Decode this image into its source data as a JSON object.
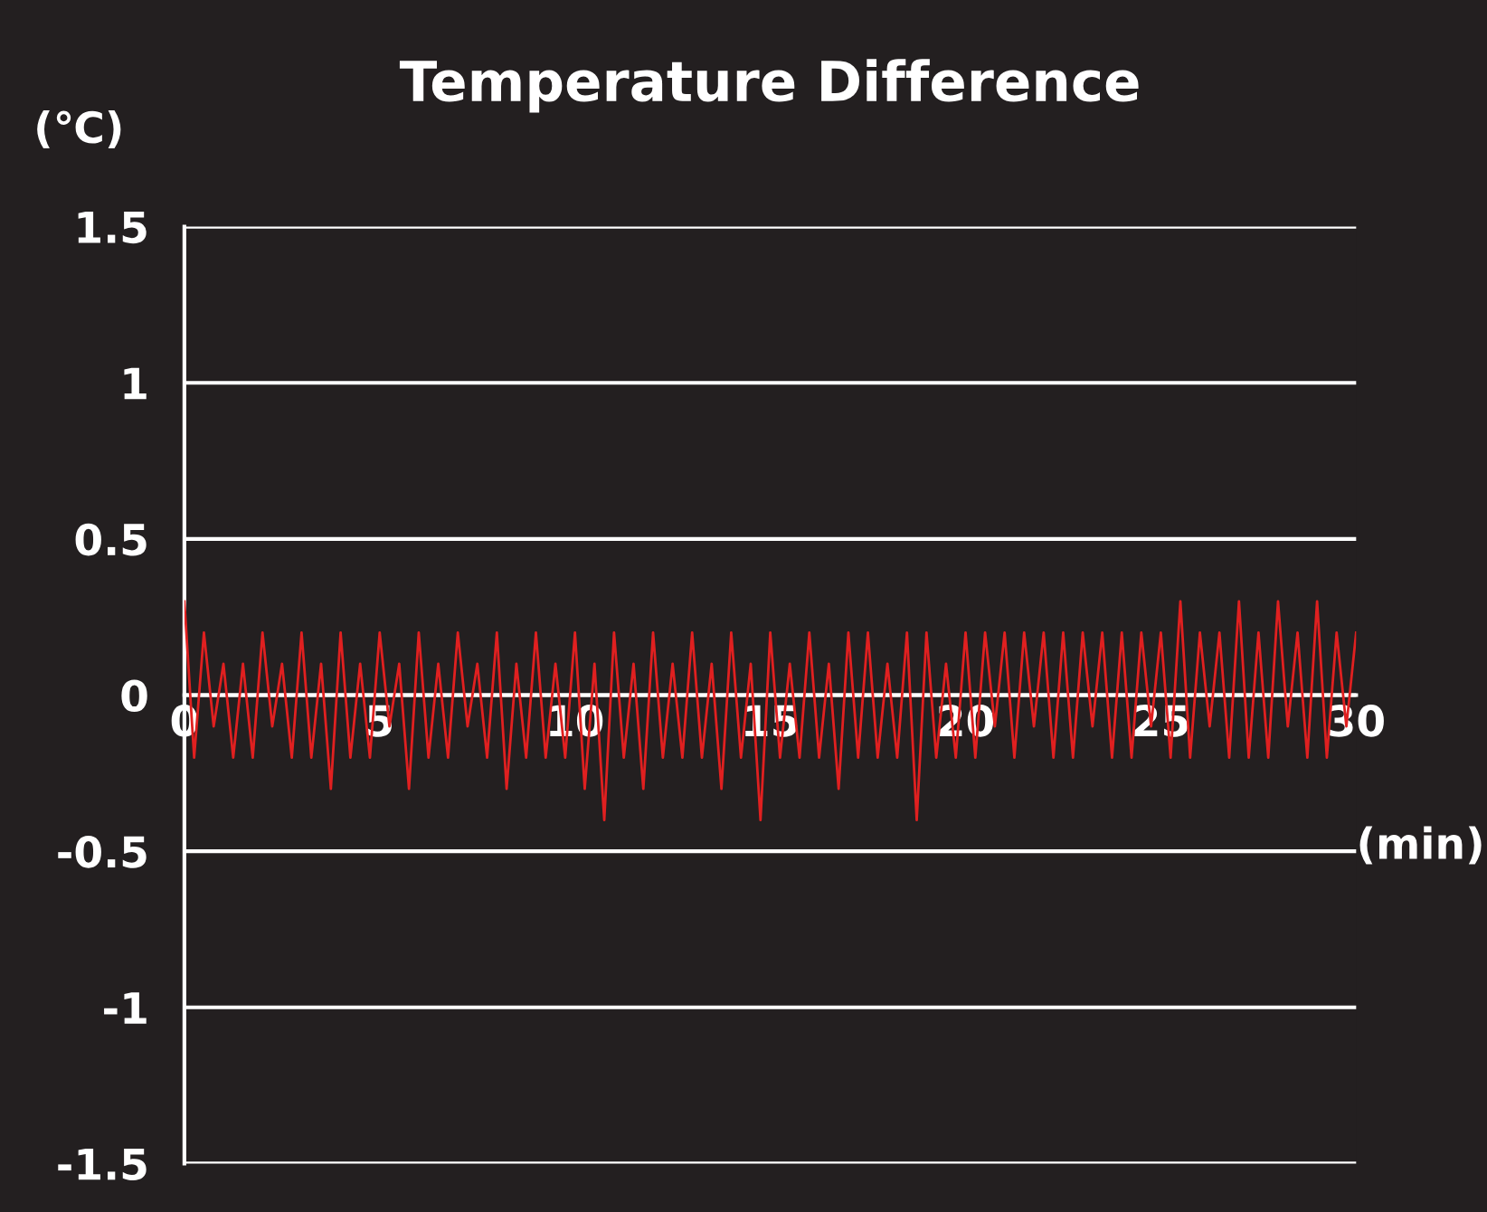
{
  "chart_data": {
    "type": "line",
    "title": "Temperature Difference",
    "xlabel": "(min)",
    "ylabel": "(℃)",
    "x": [
      0,
      0.25,
      0.5,
      0.75,
      1,
      1.25,
      1.5,
      1.75,
      2,
      2.25,
      2.5,
      2.75,
      3,
      3.25,
      3.5,
      3.75,
      4,
      4.25,
      4.5,
      4.75,
      5,
      5.25,
      5.5,
      5.75,
      6,
      6.25,
      6.5,
      6.75,
      7,
      7.25,
      7.5,
      7.75,
      8,
      8.25,
      8.5,
      8.75,
      9,
      9.25,
      9.5,
      9.75,
      10,
      10.25,
      10.5,
      10.75,
      11,
      11.25,
      11.5,
      11.75,
      12,
      12.25,
      12.5,
      12.75,
      13,
      13.25,
      13.5,
      13.75,
      14,
      14.25,
      14.5,
      14.75,
      15,
      15.25,
      15.5,
      15.75,
      16,
      16.25,
      16.5,
      16.75,
      17,
      17.25,
      17.5,
      17.75,
      18,
      18.25,
      18.5,
      18.75,
      19,
      19.25,
      19.5,
      19.75,
      20,
      20.25,
      20.5,
      20.75,
      21,
      21.25,
      21.5,
      21.75,
      22,
      22.25,
      22.5,
      22.75,
      23,
      23.25,
      23.5,
      23.75,
      24,
      24.25,
      24.5,
      24.75,
      25,
      25.25,
      25.5,
      25.75,
      26,
      26.25,
      26.5,
      26.75,
      27,
      27.25,
      27.5,
      27.75,
      28,
      28.25,
      28.5,
      28.75,
      29,
      29.25,
      29.5,
      29.75,
      30
    ],
    "series": [
      {
        "color": "#e02020",
        "values": [
          0.3,
          -0.2,
          0.2,
          -0.1,
          0.1,
          -0.2,
          0.1,
          -0.2,
          0.2,
          -0.1,
          0.1,
          -0.2,
          0.2,
          -0.2,
          0.1,
          -0.3,
          0.2,
          -0.2,
          0.1,
          -0.2,
          0.2,
          -0.1,
          0.1,
          -0.3,
          0.2,
          -0.2,
          0.1,
          -0.2,
          0.2,
          -0.1,
          0.1,
          -0.2,
          0.2,
          -0.3,
          0.1,
          -0.2,
          0.2,
          -0.2,
          0.1,
          -0.2,
          0.2,
          -0.3,
          0.1,
          -0.4,
          0.2,
          -0.2,
          0.1,
          -0.3,
          0.2,
          -0.2,
          0.1,
          -0.2,
          0.2,
          -0.2,
          0.1,
          -0.3,
          0.2,
          -0.2,
          0.1,
          -0.4,
          0.2,
          -0.2,
          0.1,
          -0.2,
          0.2,
          -0.2,
          0.1,
          -0.3,
          0.2,
          -0.2,
          0.2,
          -0.2,
          0.1,
          -0.2,
          0.2,
          -0.4,
          0.2,
          -0.2,
          0.1,
          -0.2,
          0.2,
          -0.2,
          0.2,
          -0.1,
          0.2,
          -0.2,
          0.2,
          -0.1,
          0.2,
          -0.2,
          0.2,
          -0.2,
          0.2,
          -0.1,
          0.2,
          -0.2,
          0.2,
          -0.2,
          0.2,
          -0.1,
          0.2,
          -0.2,
          0.3,
          -0.2,
          0.2,
          -0.1,
          0.2,
          -0.2,
          0.3,
          -0.2,
          0.2,
          -0.2,
          0.3,
          -0.1,
          0.2,
          -0.2,
          0.3,
          -0.2,
          0.2,
          -0.1,
          0.2
        ]
      }
    ],
    "xlim": [
      0,
      30
    ],
    "xticks": [
      0,
      5,
      10,
      15,
      20,
      25,
      30
    ],
    "ylim": [
      -1.5,
      1.5
    ],
    "yticks": [
      -1.5,
      -1,
      -0.5,
      0,
      0.5,
      1,
      1.5
    ],
    "grid": "y",
    "legend": false,
    "marker": "none",
    "line_style": "solid"
  }
}
